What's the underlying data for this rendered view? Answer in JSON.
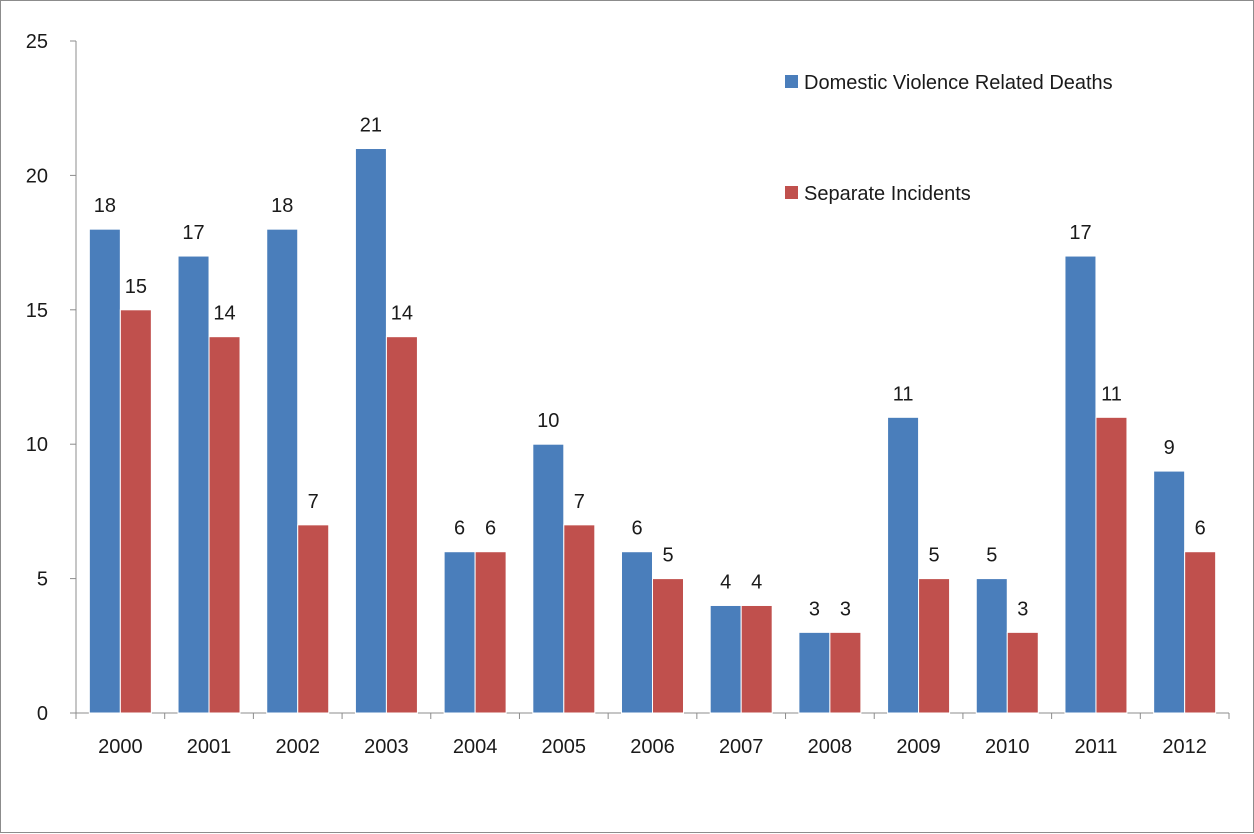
{
  "chart_data": {
    "type": "bar",
    "title": "",
    "xlabel": "",
    "ylabel": "",
    "categories": [
      "2000",
      "2001",
      "2002",
      "2003",
      "2004",
      "2005",
      "2006",
      "2007",
      "2008",
      "2009",
      "2010",
      "2011",
      "2012"
    ],
    "series": [
      {
        "name": "Domestic Violence Related Deaths",
        "color": "#4a7ebb",
        "values": [
          18,
          17,
          18,
          21,
          6,
          10,
          6,
          4,
          3,
          11,
          5,
          17,
          9
        ]
      },
      {
        "name": "Separate Incidents",
        "color": "#c0504d",
        "values": [
          15,
          14,
          7,
          14,
          6,
          7,
          5,
          4,
          3,
          5,
          3,
          11,
          6
        ]
      }
    ],
    "ylim": [
      0,
      25
    ],
    "yticks": [
      0,
      5,
      10,
      15,
      20,
      25
    ],
    "grid": false,
    "legend": "top-right",
    "data_labels": true
  }
}
